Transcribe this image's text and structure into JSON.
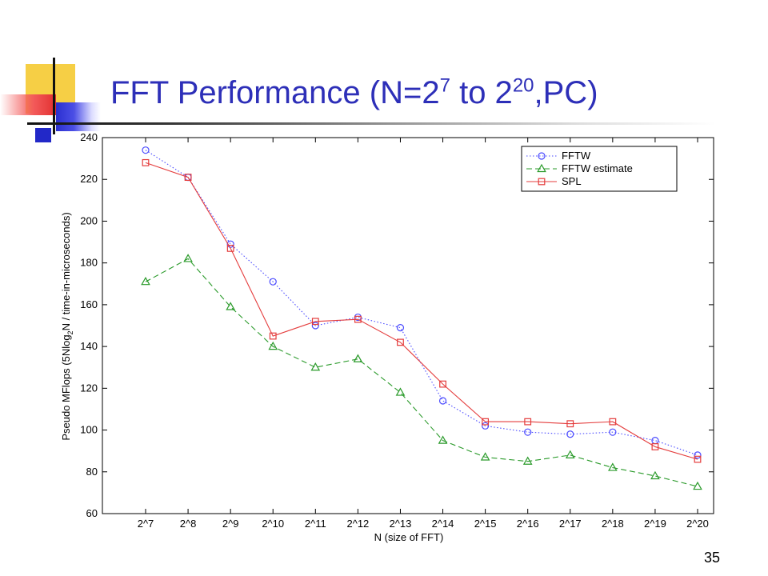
{
  "slide": {
    "title_main": "FFT Performance (N=2",
    "title_exp1": "7",
    "title_mid": " to 2",
    "title_exp2": "20",
    "title_end": ",PC)",
    "page_number": "35"
  },
  "colors": {
    "title": "#2d2fb8",
    "fftw": "#4a4aff",
    "fftw_estimate": "#2a9a2a",
    "spl": "#e43c3c"
  },
  "chart_data": {
    "type": "line",
    "title": "",
    "xlabel": "N (size of FFT)",
    "ylabel_parts": [
      "Pseudo MFlops (5Nlog",
      "2",
      "N / time-in-microseconds)"
    ],
    "categories": [
      "2^7",
      "2^8",
      "2^9",
      "2^10",
      "2^11",
      "2^12",
      "2^13",
      "2^14",
      "2^15",
      "2^16",
      "2^17",
      "2^18",
      "2^19",
      "2^20"
    ],
    "ylim": [
      60,
      240
    ],
    "yticks": [
      60,
      80,
      100,
      120,
      140,
      160,
      180,
      200,
      220,
      240
    ],
    "grid": false,
    "legend_position": "top-right",
    "series": [
      {
        "name": "FFTW",
        "marker": "circle",
        "dash": "dotted",
        "values": [
          234,
          221,
          189,
          171,
          150,
          154,
          149,
          114,
          102,
          99,
          98,
          99,
          95,
          88
        ]
      },
      {
        "name": "FFTW estimate",
        "marker": "triangle",
        "dash": "dashed",
        "values": [
          171,
          182,
          159,
          140,
          130,
          134,
          118,
          95,
          87,
          85,
          88,
          82,
          78,
          73
        ]
      },
      {
        "name": "SPL",
        "marker": "square",
        "dash": "solid",
        "values": [
          228,
          221,
          187,
          145,
          152,
          153,
          142,
          122,
          104,
          104,
          103,
          104,
          92,
          86
        ]
      }
    ]
  }
}
